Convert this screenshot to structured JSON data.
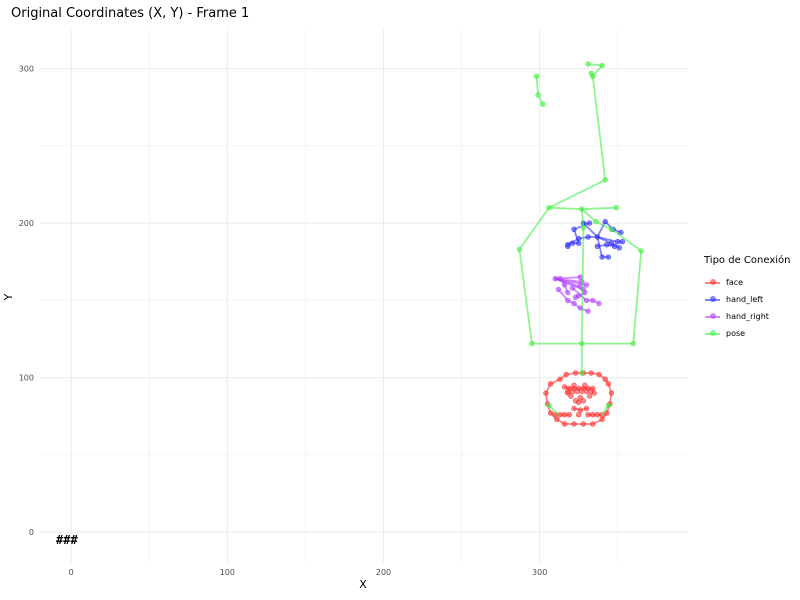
{
  "chart_data": {
    "type": "scatter",
    "title": "Original Coordinates (X, Y) - Frame 1",
    "xlabel": "X",
    "ylabel": "Y",
    "xlim": [
      -20,
      395
    ],
    "ylim": [
      -20,
      325
    ],
    "xticks": [
      0,
      100,
      200,
      300
    ],
    "yticks": [
      0,
      100,
      200,
      300
    ],
    "grid": true,
    "legend": {
      "title": "Tipo de Conexión",
      "position": "right"
    },
    "annotation": "###",
    "series": [
      {
        "name": "face",
        "color": "#ff3030",
        "points": [
          [
            304,
            90
          ],
          [
            305,
            83
          ],
          [
            307,
            77
          ],
          [
            311,
            73
          ],
          [
            316,
            70
          ],
          [
            322,
            70
          ],
          [
            328,
            70
          ],
          [
            334,
            70
          ],
          [
            340,
            73
          ],
          [
            343,
            77
          ],
          [
            345,
            83
          ],
          [
            346,
            90
          ],
          [
            344,
            96
          ],
          [
            342,
            99
          ],
          [
            338,
            102
          ],
          [
            333,
            103
          ],
          [
            328,
            103
          ],
          [
            323,
            103
          ],
          [
            317,
            102
          ],
          [
            313,
            99
          ],
          [
            307,
            96
          ],
          [
            316,
            94
          ],
          [
            319,
            93
          ],
          [
            322,
            93
          ],
          [
            325,
            93
          ],
          [
            328,
            93
          ],
          [
            331,
            93
          ],
          [
            334,
            93
          ],
          [
            318,
            91
          ],
          [
            321,
            91
          ],
          [
            324,
            91
          ],
          [
            327,
            91
          ],
          [
            330,
            91
          ],
          [
            333,
            91
          ],
          [
            318,
            90
          ],
          [
            322,
            95
          ],
          [
            329,
            95
          ],
          [
            335,
            90
          ],
          [
            320,
            88
          ],
          [
            326,
            87
          ],
          [
            332,
            88
          ],
          [
            323,
            85
          ],
          [
            328,
            85
          ],
          [
            325,
            84
          ],
          [
            322,
            80
          ],
          [
            326,
            79
          ],
          [
            330,
            80
          ],
          [
            310,
            76
          ],
          [
            313,
            76
          ],
          [
            316,
            76
          ],
          [
            319,
            76
          ],
          [
            331,
            76
          ],
          [
            334,
            76
          ],
          [
            337,
            76
          ],
          [
            340,
            76
          ],
          [
            325,
            76
          ]
        ],
        "segments": [
          [
            [
              304,
              90
            ],
            [
              305,
              83
            ],
            [
              307,
              77
            ],
            [
              311,
              73
            ],
            [
              316,
              70
            ],
            [
              322,
              70
            ],
            [
              328,
              70
            ],
            [
              334,
              70
            ],
            [
              340,
              73
            ],
            [
              343,
              77
            ],
            [
              345,
              83
            ],
            [
              346,
              90
            ],
            [
              344,
              96
            ],
            [
              342,
              99
            ],
            [
              338,
              102
            ],
            [
              333,
              103
            ],
            [
              328,
              103
            ],
            [
              323,
              103
            ],
            [
              317,
              102
            ],
            [
              313,
              99
            ],
            [
              307,
              96
            ],
            [
              304,
              90
            ]
          ],
          [
            [
              310,
              76
            ],
            [
              313,
              76
            ],
            [
              316,
              76
            ],
            [
              319,
              76
            ]
          ],
          [
            [
              331,
              76
            ],
            [
              334,
              76
            ],
            [
              337,
              76
            ],
            [
              340,
              76
            ]
          ],
          [
            [
              316,
              94
            ],
            [
              319,
              93
            ],
            [
              322,
              93
            ],
            [
              325,
              93
            ],
            [
              328,
              93
            ],
            [
              331,
              93
            ],
            [
              334,
              93
            ]
          ],
          [
            [
              322,
              80
            ],
            [
              326,
              79
            ],
            [
              330,
              80
            ]
          ]
        ]
      },
      {
        "name": "hand_left",
        "color": "#3030ff",
        "points": [
          [
            328,
            200
          ],
          [
            332,
            200
          ],
          [
            337,
            191
          ],
          [
            342,
            201
          ],
          [
            347,
            196
          ],
          [
            352,
            194
          ],
          [
            340,
            178
          ],
          [
            344,
            178
          ],
          [
            346,
            187
          ],
          [
            350,
            188
          ],
          [
            351,
            184
          ],
          [
            353,
            188
          ],
          [
            321,
            187
          ],
          [
            318,
            186
          ],
          [
            325,
            190
          ],
          [
            331,
            191
          ],
          [
            337,
            185
          ],
          [
            343,
            186
          ],
          [
            348,
            185
          ],
          [
            322,
            196
          ],
          [
            325,
            187
          ],
          [
            318,
            185
          ]
        ],
        "segments": [
          [
            [
              328,
              200
            ],
            [
              337,
              191
            ],
            [
              342,
              201
            ],
            [
              347,
              196
            ],
            [
              352,
              194
            ]
          ],
          [
            [
              337,
              191
            ],
            [
              346,
              187
            ],
            [
              351,
              184
            ]
          ],
          [
            [
              337,
              191
            ],
            [
              340,
              178
            ],
            [
              344,
              178
            ]
          ],
          [
            [
              337,
              191
            ],
            [
              350,
              188
            ],
            [
              353,
              188
            ]
          ],
          [
            [
              337,
              191
            ],
            [
              331,
              191
            ],
            [
              325,
              190
            ],
            [
              318,
              186
            ]
          ],
          [
            [
              328,
              200
            ],
            [
              332,
              200
            ],
            [
              322,
              196
            ],
            [
              325,
              187
            ],
            [
              321,
              187
            ]
          ],
          [
            [
              337,
              185
            ],
            [
              343,
              186
            ],
            [
              348,
              185
            ]
          ]
        ]
      },
      {
        "name": "hand_right",
        "color": "#b040ff",
        "points": [
          [
            310,
            164
          ],
          [
            313,
            164
          ],
          [
            316,
            160
          ],
          [
            318,
            155
          ],
          [
            312,
            157
          ],
          [
            321,
            158
          ],
          [
            323,
            152
          ],
          [
            318,
            150
          ],
          [
            322,
            148
          ],
          [
            326,
            145
          ],
          [
            331,
            143
          ],
          [
            330,
            150
          ],
          [
            334,
            150
          ],
          [
            338,
            148
          ],
          [
            326,
            165
          ],
          [
            327,
            162
          ],
          [
            326,
            159
          ],
          [
            328,
            157
          ],
          [
            330,
            160
          ],
          [
            329,
            155
          ],
          [
            325,
            153
          ]
        ],
        "segments": [
          [
            [
              310,
              164
            ],
            [
              326,
              165
            ]
          ],
          [
            [
              310,
              164
            ],
            [
              327,
              162
            ]
          ],
          [
            [
              310,
              164
            ],
            [
              326,
              159
            ]
          ],
          [
            [
              310,
              164
            ],
            [
              328,
              157
            ]
          ],
          [
            [
              310,
              164
            ],
            [
              330,
              160
            ]
          ],
          [
            [
              310,
              164
            ],
            [
              313,
              164
            ],
            [
              316,
              160
            ],
            [
              318,
              155
            ]
          ],
          [
            [
              312,
              157
            ],
            [
              318,
              150
            ],
            [
              322,
              148
            ],
            [
              326,
              145
            ],
            [
              331,
              143
            ]
          ],
          [
            [
              321,
              158
            ],
            [
              330,
              150
            ],
            [
              334,
              150
            ],
            [
              338,
              148
            ]
          ],
          [
            [
              323,
              152
            ],
            [
              329,
              155
            ],
            [
              325,
              153
            ]
          ]
        ]
      },
      {
        "name": "pose",
        "color": "#44ee44",
        "points": [
          [
            298,
            295
          ],
          [
            299,
            283
          ],
          [
            302,
            277
          ],
          [
            331,
            303
          ],
          [
            333,
            297
          ],
          [
            340,
            302
          ],
          [
            334,
            295
          ],
          [
            342,
            228
          ],
          [
            306,
            210
          ],
          [
            327,
            209
          ],
          [
            349,
            210
          ],
          [
            336,
            201
          ],
          [
            346,
            196
          ],
          [
            328,
            197
          ],
          [
            365,
            182
          ],
          [
            287,
            183
          ],
          [
            295,
            122
          ],
          [
            327,
            122
          ],
          [
            360,
            122
          ],
          [
            327,
            103
          ],
          [
            306,
            82
          ],
          [
            344,
            82
          ]
        ],
        "segments": [
          [
            [
              298,
              295
            ],
            [
              299,
              283
            ],
            [
              302,
              277
            ]
          ],
          [
            [
              331,
              303
            ],
            [
              340,
              302
            ],
            [
              334,
              295
            ],
            [
              333,
              297
            ]
          ],
          [
            [
              334,
              295
            ],
            [
              342,
              228
            ],
            [
              306,
              210
            ],
            [
              327,
              209
            ],
            [
              349,
              210
            ]
          ],
          [
            [
              327,
              209
            ],
            [
              336,
              201
            ],
            [
              346,
              196
            ],
            [
              365,
              182
            ],
            [
              360,
              122
            ],
            [
              295,
              122
            ],
            [
              287,
              183
            ],
            [
              306,
              210
            ]
          ],
          [
            [
              327,
              209
            ],
            [
              328,
              197
            ],
            [
              327,
              122
            ],
            [
              327,
              103
            ]
          ],
          [
            [
              306,
              82
            ],
            [
              312,
              76
            ]
          ],
          [
            [
              344,
              82
            ],
            [
              340,
              76
            ]
          ]
        ]
      }
    ]
  }
}
